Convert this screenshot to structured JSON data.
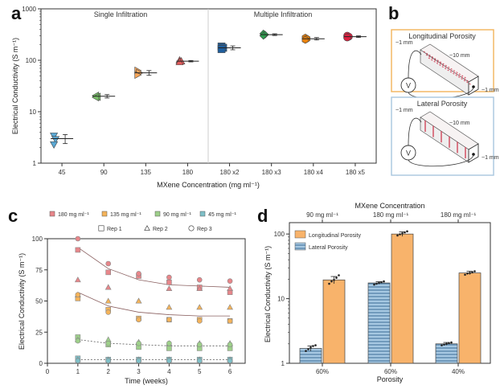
{
  "panels": {
    "a": {
      "label": "a"
    },
    "b": {
      "label": "b"
    },
    "c": {
      "label": "c"
    },
    "d": {
      "label": "d"
    }
  },
  "colors": {
    "blue": "#5aa8d4",
    "green": "#7cc36b",
    "orange": "#f5a55a",
    "red": "#e35b5b",
    "darkblue": "#1f5f9e",
    "darkgreen": "#2e9e4f",
    "darkorange": "#e8820e",
    "crimson": "#e02040",
    "pink": "#e8868a",
    "lorange": "#f4b35a",
    "lgreen": "#9ed08a",
    "lteal": "#7ec0c8",
    "barOrange": "#f8b36b",
    "barBlue": "#a6c8e2",
    "frameOrange": "#f3b35a",
    "frameBlue": "#a7c6df"
  },
  "chart_data": [
    {
      "panel": "a",
      "type": "scatter",
      "title": "",
      "xlabel": "MXene Concentration (mg ml⁻¹)",
      "ylabel": "Electrical Conductivity (S m⁻¹)",
      "yscale": "log",
      "ylim": [
        1,
        1000
      ],
      "yticks": [
        "1",
        "10",
        "100",
        "1000"
      ],
      "categories": [
        "45",
        "90",
        "135",
        "180",
        "180 x2",
        "180 x3",
        "180 x4",
        "180 x5"
      ],
      "group_labels": [
        "Single Infiltration",
        "Multiple Infiltration"
      ],
      "series": [
        {
          "category": "45",
          "color": "blue",
          "marker": "triangle-down",
          "values": [
            3.4,
            2.9,
            2.3
          ],
          "mean": 3.0,
          "err": 0.6
        },
        {
          "category": "90",
          "color": "green",
          "marker": "triangle-left",
          "values": [
            20.5,
            19.5,
            19.0
          ],
          "mean": 20,
          "err": 1.5
        },
        {
          "category": "135",
          "color": "orange",
          "marker": "triangle-right",
          "values": [
            63,
            57,
            52
          ],
          "mean": 57,
          "err": 6
        },
        {
          "category": "180",
          "color": "red",
          "marker": "triangle-up",
          "values": [
            100,
            96,
            93
          ],
          "mean": 96,
          "err": 3
        },
        {
          "category": "180 x2",
          "color": "darkblue",
          "marker": "square",
          "values": [
            185,
            175,
            165
          ],
          "mean": 175,
          "err": 15
        },
        {
          "category": "180 x3",
          "color": "darkgreen",
          "marker": "diamond",
          "values": [
            330,
            315,
            300
          ],
          "mean": 315,
          "err": 12
        },
        {
          "category": "180 x4",
          "color": "darkorange",
          "marker": "hexagon",
          "values": [
            275,
            262,
            250
          ],
          "mean": 262,
          "err": 14
        },
        {
          "category": "180 x5",
          "color": "crimson",
          "marker": "circle",
          "values": [
            300,
            288,
            278
          ],
          "mean": 288,
          "err": 10
        }
      ]
    },
    {
      "panel": "c",
      "type": "scatter",
      "title": "",
      "xlabel": "Time (weeks)",
      "ylabel": "Electrical Conductivity (S m⁻¹)",
      "xlim": [
        0,
        6.5
      ],
      "ylim": [
        0,
        100
      ],
      "x": [
        1,
        2,
        3,
        4,
        5,
        6
      ],
      "xticks": [
        "0",
        "1",
        "2",
        "3",
        "4",
        "5",
        "6"
      ],
      "yticks": [
        "0",
        "25",
        "50",
        "75",
        "100"
      ],
      "legend_concentration": [
        "180 mg ml⁻¹",
        "135 mg ml⁻¹",
        "90 mg ml⁻¹",
        "45 mg ml⁻¹"
      ],
      "legend_replicate": [
        "Rep 1",
        "Rep 2",
        "Rep 3"
      ],
      "series": [
        {
          "name": "180 mg ml⁻¹",
          "color": "pink",
          "rep1": [
            91,
            73,
            70,
            65,
            61,
            57
          ],
          "rep2": [
            67,
            61,
            50,
            60,
            60,
            60
          ],
          "rep3": [
            100,
            80,
            72,
            69,
            67,
            66
          ],
          "fit": [
            93,
            76,
            67,
            63,
            62,
            61
          ],
          "fit_style": "solid"
        },
        {
          "name": "135 mg ml⁻¹",
          "color": "lorange",
          "rep1": [
            52,
            43,
            36,
            35,
            35,
            34
          ],
          "rep2": [
            55,
            50,
            50,
            45,
            45,
            45
          ],
          "rep3": [
            55,
            41,
            35,
            35,
            34,
            34
          ],
          "fit": [
            57,
            46,
            41,
            39,
            38,
            38
          ],
          "fit_style": "solid"
        },
        {
          "name": "90 mg ml⁻¹",
          "color": "lgreen",
          "rep1": [
            21,
            15,
            13,
            12,
            12,
            12
          ],
          "rep2": [
            19,
            19,
            17,
            16,
            16,
            16
          ],
          "rep3": [
            18,
            16,
            16,
            16,
            15,
            15
          ],
          "fit": [
            19,
            16,
            15,
            14,
            14,
            14
          ],
          "fit_style": "dashed"
        },
        {
          "name": "45 mg ml⁻¹",
          "color": "lteal",
          "rep1": [
            4,
            3,
            3,
            3,
            3,
            3
          ],
          "rep2": [
            3,
            3,
            3,
            3,
            3,
            3
          ],
          "rep3": [
            2,
            2,
            2,
            2,
            2,
            2
          ],
          "fit": [
            3,
            3,
            3,
            3,
            3,
            3
          ],
          "fit_style": "dashed"
        }
      ]
    },
    {
      "panel": "d",
      "type": "bar",
      "title": "",
      "xlabel": "Porosity",
      "ylabel": "Electrical Conductivity (S m⁻¹)",
      "top_axis_label": "MXene Concentration",
      "top_ticks": [
        "90 mg ml⁻¹",
        "180 mg ml⁻¹",
        "180 mg ml⁻¹"
      ],
      "yscale": "log",
      "ylim": [
        1,
        150
      ],
      "yticks": [
        "1",
        "10",
        "100"
      ],
      "categories": [
        "60%",
        "60%",
        "40%"
      ],
      "series": [
        {
          "name": "Lateral Porosity",
          "color": "barBlue",
          "pattern": "hlines",
          "values": [
            1.7,
            17.5,
            2.0
          ],
          "err": [
            0.15,
            0.8,
            0.1
          ],
          "points": [
            [
              1.55,
              1.65,
              1.75,
              1.85,
              1.9
            ],
            [
              16.5,
              17.0,
              17.5,
              18.0,
              18.5
            ],
            [
              1.9,
              1.95,
              2.0,
              2.05,
              2.1
            ]
          ]
        },
        {
          "name": "Longitudinal Porosity",
          "color": "barOrange",
          "pattern": "solid",
          "values": [
            19.5,
            100,
            25
          ],
          "err": [
            2.5,
            8,
            1.5
          ],
          "points": [
            [
              17,
              18.5,
              19.5,
              21,
              23
            ],
            [
              95,
              99,
              102,
              106,
              110
            ],
            [
              23.5,
              24.5,
              25,
              25.5,
              26.5
            ]
          ]
        }
      ]
    }
  ],
  "panel_b": {
    "boxes": [
      {
        "title": "Longitudinal Porosity",
        "dim_top": "~1 mm",
        "dim_len": "~10 mm",
        "dim_side": "~1 mm",
        "meter": "V",
        "frame": "frameOrange"
      },
      {
        "title": "Lateral Porosity",
        "dim_top": "~1 mm",
        "dim_len": "~10 mm",
        "dim_side": "~1 mm",
        "meter": "V",
        "frame": "frameBlue"
      }
    ]
  }
}
